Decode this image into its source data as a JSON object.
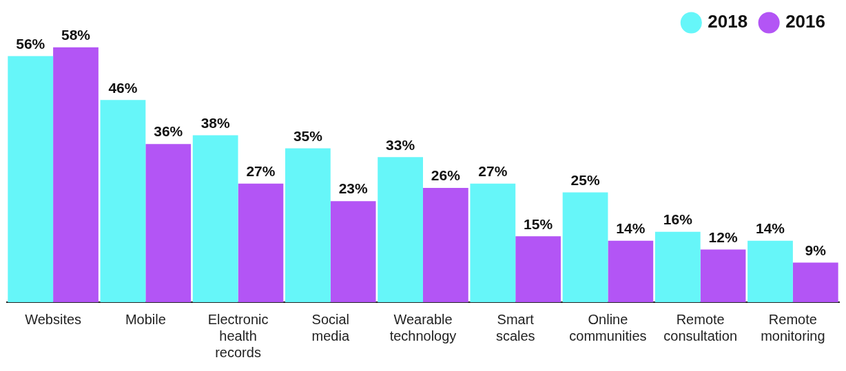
{
  "chart_data": {
    "type": "bar",
    "categories": [
      "Websites",
      "Mobile",
      "Electronic health records",
      "Social media",
      "Wearable technology",
      "Smart scales",
      "Online communities",
      "Remote consultation",
      "Remote monitoring"
    ],
    "series": [
      {
        "name": "2018",
        "color": "#66f6f9",
        "values": [
          56,
          46,
          38,
          35,
          33,
          27,
          25,
          16,
          14
        ],
        "value_labels": [
          "56%",
          "46%",
          "38%",
          "35%",
          "33%",
          "27%",
          "25%",
          "16%",
          "14%"
        ]
      },
      {
        "name": "2016",
        "color": "#b355f5",
        "values": [
          58,
          36,
          27,
          23,
          26,
          15,
          14,
          12,
          9
        ],
        "value_labels": [
          "58%",
          "36%",
          "27%",
          "23%",
          "26%",
          "15%",
          "14%",
          "12%",
          "9%"
        ]
      }
    ],
    "legend": "top right",
    "grid": false
  }
}
